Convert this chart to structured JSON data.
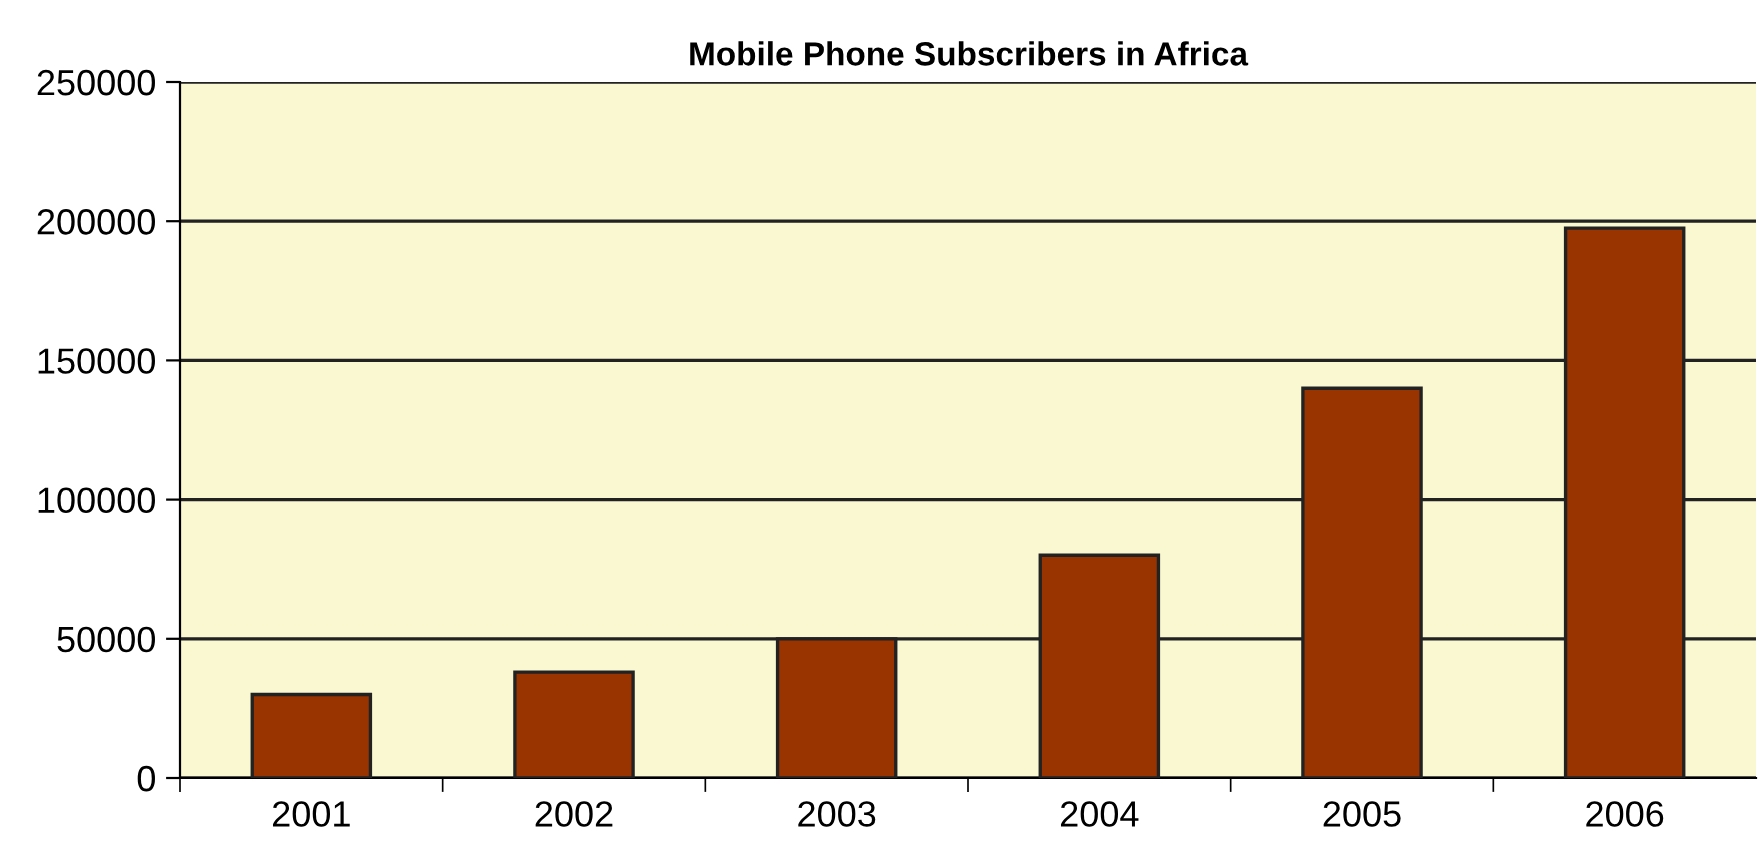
{
  "chart_data": {
    "type": "bar",
    "title": "Mobile Phone Subscribers in Africa",
    "categories": [
      "2001",
      "2002",
      "2003",
      "2004",
      "2005",
      "2006"
    ],
    "values": [
      30000,
      38000,
      50000,
      80000,
      140000,
      197500
    ],
    "color": "#993300",
    "ylim": [
      0,
      250000
    ],
    "yticks": [
      0,
      50000,
      100000,
      150000,
      200000,
      250000
    ],
    "grid": "y",
    "legend": false
  }
}
